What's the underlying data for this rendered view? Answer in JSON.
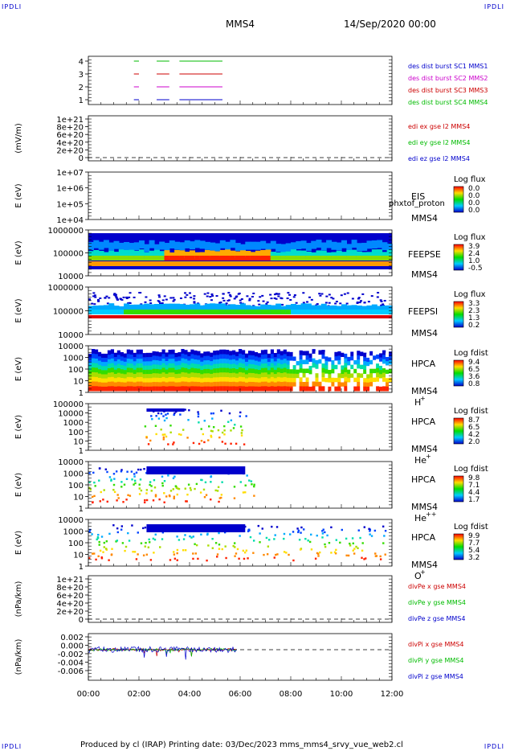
{
  "header": {
    "corner_tl": "IPDLI",
    "corner_tr": "IPDLI",
    "corner_bl": "IPDLI",
    "corner_br": "IPDLI",
    "spacecraft": "MMS4",
    "date": "14/Sep/2020 00:00"
  },
  "footer": {
    "text": "Produced by cl (IRAP)   Printing date: 03/Dec/2023   mms_mms4_srvy_vue_web2.cl"
  },
  "chart_data": {
    "type": "line",
    "time_axis": {
      "ticks": [
        "00:00",
        "02:00",
        "04:00",
        "06:00",
        "08:00",
        "10:00",
        "12:00"
      ],
      "range_hours": [
        0,
        12
      ]
    },
    "panels": [
      {
        "id": "burst",
        "type": "line",
        "yticks": [
          "1",
          "2",
          "3",
          "4"
        ],
        "series": [
          {
            "name": "des dist burst SC1 MMS1",
            "color": "#0000cc",
            "level": 1,
            "segments": [
              [
                1.8,
                2.0
              ],
              [
                2.7,
                3.2
              ],
              [
                3.6,
                5.3
              ]
            ]
          },
          {
            "name": "des dist burst SC2 MMS2",
            "color": "#cc00cc",
            "level": 2,
            "segments": [
              [
                1.8,
                2.0
              ],
              [
                2.7,
                3.2
              ],
              [
                3.6,
                5.3
              ]
            ]
          },
          {
            "name": "des dist burst SC3 MMS3",
            "color": "#cc0000",
            "level": 3,
            "segments": [
              [
                1.8,
                2.0
              ],
              [
                2.7,
                3.2
              ],
              [
                3.6,
                5.3
              ]
            ]
          },
          {
            "name": "des dist burst SC4 MMS4",
            "color": "#00bb00",
            "level": 4,
            "segments": [
              [
                1.8,
                2.0
              ],
              [
                2.7,
                3.2
              ],
              [
                3.6,
                5.3
              ]
            ]
          }
        ]
      },
      {
        "id": "edi",
        "type": "line",
        "ylabel": "(mV/m)",
        "yticks": [
          "0",
          "2e+20",
          "4e+20",
          "6e+20",
          "8e+20",
          "1e+21"
        ],
        "series": [
          {
            "name": "edi ex gse l2 MMS4",
            "color": "#cc0000"
          },
          {
            "name": "edi ey gse l2 MMS4",
            "color": "#00bb00"
          },
          {
            "name": "edi ez gse l2 MMS4",
            "color": "#0000cc"
          }
        ]
      },
      {
        "id": "eis",
        "type": "heatmap",
        "ylabel": "E (eV)",
        "yticks": [
          "1e+04",
          "1e+05",
          "1e+06",
          "1e+07"
        ],
        "instrument": "EIS",
        "spacecraft": "MMS4",
        "overlay_text": "phxtof_proton",
        "colorbar": {
          "title": "Log flux",
          "ticks": [
            "0.0",
            "0.0",
            "0.0",
            "0.0"
          ]
        }
      },
      {
        "id": "feepse",
        "type": "heatmap",
        "ylabel": "E (eV)",
        "yticks": [
          "10000",
          "100000",
          "1000000"
        ],
        "instrument": "FEEPSE",
        "spacecraft": "MMS4",
        "colorbar": {
          "title": "Log flux",
          "ticks": [
            "3.9",
            "2.4",
            "1.0",
            "-0.5"
          ]
        }
      },
      {
        "id": "feepsi",
        "type": "heatmap",
        "ylabel": "E (eV)",
        "yticks": [
          "10000",
          "100000",
          "1000000"
        ],
        "instrument": "FEEPSI",
        "spacecraft": "MMS4",
        "colorbar": {
          "title": "Log flux",
          "ticks": [
            "3.3",
            "2.3",
            "1.3",
            "0.2"
          ]
        }
      },
      {
        "id": "hpca_h",
        "type": "heatmap",
        "ylabel": "E (eV)",
        "yticks": [
          "1",
          "10",
          "100",
          "1000",
          "10000"
        ],
        "instrument": "HPCA",
        "spacecraft": "MMS4",
        "species": "H",
        "charge": "+",
        "colorbar": {
          "title": "Log fdist",
          "ticks": [
            "9.4",
            "6.5",
            "3.6",
            "0.8"
          ]
        }
      },
      {
        "id": "hpca_he",
        "type": "heatmap",
        "ylabel": "E (eV)",
        "yticks": [
          "1",
          "10",
          "100",
          "1000",
          "10000",
          "100000"
        ],
        "instrument": "HPCA",
        "spacecraft": "MMS4",
        "species": "He",
        "charge": "+",
        "colorbar": {
          "title": "Log fdist",
          "ticks": [
            "8.7",
            "6.5",
            "4.2",
            "2.0"
          ]
        }
      },
      {
        "id": "hpca_hepp",
        "type": "heatmap",
        "ylabel": "E (eV)",
        "yticks": [
          "1",
          "10",
          "100",
          "1000",
          "10000"
        ],
        "instrument": "HPCA",
        "spacecraft": "MMS4",
        "species": "He",
        "charge": "++",
        "colorbar": {
          "title": "Log fdist",
          "ticks": [
            "9.8",
            "7.1",
            "4.4",
            "1.7"
          ]
        }
      },
      {
        "id": "hpca_o",
        "type": "heatmap",
        "ylabel": "E (eV)",
        "yticks": [
          "1",
          "10",
          "100",
          "1000",
          "10000"
        ],
        "instrument": "HPCA",
        "spacecraft": "MMS4",
        "species": "O",
        "charge": "+",
        "colorbar": {
          "title": "Log fdist",
          "ticks": [
            "9.9",
            "7.7",
            "5.4",
            "3.2"
          ]
        }
      },
      {
        "id": "divpe",
        "type": "line",
        "ylabel": "(nPa/km)",
        "yticks": [
          "0",
          "2e+20",
          "4e+20",
          "6e+20",
          "8e+20",
          "1e+21"
        ],
        "series": [
          {
            "name": "divPe x gse MMS4",
            "color": "#cc0000"
          },
          {
            "name": "divPe y gse MMS4",
            "color": "#00bb00"
          },
          {
            "name": "divPe z gse MMS4",
            "color": "#0000cc"
          }
        ]
      },
      {
        "id": "divpi",
        "type": "line",
        "ylabel": "(nPa/km)",
        "yticks": [
          "-0.006",
          "-0.004",
          "-0.002",
          "0.000",
          "0.002"
        ],
        "ylim": [
          -0.007,
          0.003
        ],
        "series": [
          {
            "name": "divPi x gse MMS4",
            "color": "#cc0000"
          },
          {
            "name": "divPi y gse MMS4",
            "color": "#00bb00"
          },
          {
            "name": "divPi z gse MMS4",
            "color": "#0000cc"
          }
        ]
      }
    ]
  }
}
